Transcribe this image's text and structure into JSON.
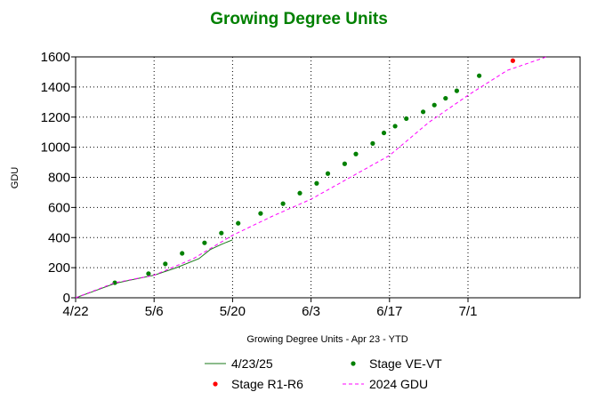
{
  "chart_data": {
    "type": "line",
    "title": "Growing Degree Units",
    "xlabel": "Growing Degree Units - Apr 23 - YTD",
    "ylabel": "GDU",
    "xlim": [
      "2025-04-22",
      "2025-07-21"
    ],
    "ylim": [
      0,
      1600
    ],
    "x_ticks": [
      "4/22",
      "5/6",
      "5/20",
      "6/3",
      "6/17",
      "7/1"
    ],
    "x_tick_dates": [
      "2025-04-22",
      "2025-05-06",
      "2025-05-20",
      "2025-06-03",
      "2025-06-17",
      "2025-07-01"
    ],
    "y_ticks": [
      0,
      200,
      400,
      600,
      800,
      1000,
      1200,
      1400,
      1600
    ],
    "grid": true,
    "legend_position": "bottom",
    "series": [
      {
        "name": "4/23/25",
        "style": "line",
        "color": "#1a7a1a",
        "x": [
          "2025-04-22",
          "2025-04-25",
          "2025-04-29",
          "2025-05-02",
          "2025-05-06",
          "2025-05-10",
          "2025-05-14",
          "2025-05-16",
          "2025-05-18",
          "2025-05-20"
        ],
        "y": [
          0,
          40,
          95,
          120,
          150,
          200,
          260,
          320,
          355,
          385
        ]
      },
      {
        "name": "Stage VE-VT",
        "style": "points",
        "color": "#008000",
        "x": [
          "2025-04-29",
          "2025-05-05",
          "2025-05-08",
          "2025-05-11",
          "2025-05-15",
          "2025-05-18",
          "2025-05-21",
          "2025-05-25",
          "2025-05-29",
          "2025-06-01",
          "2025-06-04",
          "2025-06-06",
          "2025-06-09",
          "2025-06-11",
          "2025-06-14",
          "2025-06-16",
          "2025-06-18",
          "2025-06-20",
          "2025-06-23",
          "2025-06-25",
          "2025-06-27",
          "2025-06-29",
          "2025-07-03"
        ],
        "y": [
          100,
          160,
          225,
          295,
          365,
          430,
          495,
          560,
          625,
          695,
          760,
          825,
          890,
          955,
          1025,
          1095,
          1140,
          1190,
          1235,
          1280,
          1325,
          1375,
          1475
        ]
      },
      {
        "name": "Stage R1-R6",
        "style": "points",
        "color": "#ff0000",
        "x": [
          "2025-07-09"
        ],
        "y": [
          1575
        ]
      },
      {
        "name": "2024 GDU",
        "style": "dashed",
        "color": "#ff00ff",
        "x": [
          "2025-04-22",
          "2025-04-29",
          "2025-05-06",
          "2025-05-13",
          "2025-05-20",
          "2025-05-27",
          "2025-06-03",
          "2025-06-10",
          "2025-06-17",
          "2025-06-24",
          "2025-07-01",
          "2025-07-08",
          "2025-07-15"
        ],
        "y": [
          0,
          100,
          150,
          260,
          415,
          540,
          655,
          800,
          945,
          1165,
          1345,
          1510,
          1600
        ]
      }
    ]
  },
  "colors": {
    "title": "#008000",
    "grid": "#000000"
  }
}
